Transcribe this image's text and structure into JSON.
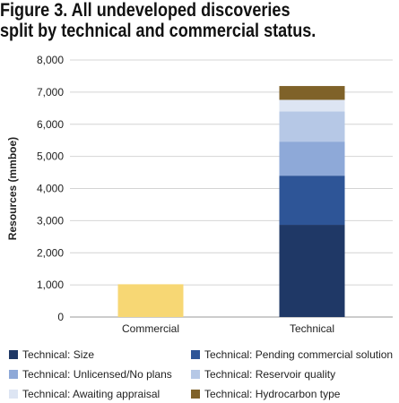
{
  "title_lines": [
    "Figure 3. All undeveloped discoveries",
    "split by technical and commercial status."
  ],
  "chart_data": {
    "type": "bar",
    "stacked": true,
    "categories": [
      "Commercial",
      "Technical"
    ],
    "ylabel": "Resources (mmboe)",
    "ylim": [
      0,
      8000
    ],
    "yticks": [
      0,
      1000,
      2000,
      3000,
      4000,
      5000,
      6000,
      7000,
      8000
    ],
    "ytick_labels": [
      "0",
      "1,000",
      "2,000",
      "3,000",
      "4,000",
      "5,000",
      "6,000",
      "7,000",
      "8,000"
    ],
    "grid": true,
    "legend_position": "bottom",
    "series": [
      {
        "name": "",
        "color": "#f7d774",
        "values": [
          1020,
          0
        ]
      },
      {
        "name": "Technical: Size",
        "color": "#1f3866",
        "values": [
          0,
          2870
        ]
      },
      {
        "name": "Technical: Pending commercial solution",
        "color": "#2e5597",
        "values": [
          0,
          1530
        ]
      },
      {
        "name": "Technical: Unlicensed/No plans",
        "color": "#8ea9d8",
        "values": [
          0,
          1060
        ]
      },
      {
        "name": "Technical: Reservoir quality",
        "color": "#b6c8e6",
        "values": [
          0,
          940
        ]
      },
      {
        "name": "Technical: Awaiting appraisal",
        "color": "#dde5f3",
        "values": [
          0,
          360
        ]
      },
      {
        "name": "Technical: Hydrocarbon type",
        "color": "#7f6229",
        "values": [
          0,
          430
        ]
      }
    ]
  }
}
